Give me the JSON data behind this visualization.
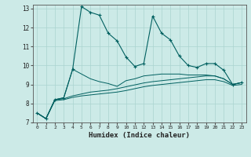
{
  "xlabel": "Humidex (Indice chaleur)",
  "bg_color": "#cceae7",
  "line_color": "#006060",
  "grid_color": "#aad4d0",
  "xlim": [
    -0.5,
    23.5
  ],
  "ylim": [
    7,
    13.2
  ],
  "yticks": [
    7,
    8,
    9,
    10,
    11,
    12,
    13
  ],
  "xticks": [
    0,
    1,
    2,
    3,
    4,
    5,
    6,
    7,
    8,
    9,
    10,
    11,
    12,
    13,
    14,
    15,
    16,
    17,
    18,
    19,
    20,
    21,
    22,
    23
  ],
  "line1_x": [
    0,
    1,
    2,
    3,
    4,
    5,
    6,
    7,
    8,
    9,
    10,
    11,
    12,
    13,
    14,
    15,
    16,
    17,
    18,
    19,
    20,
    21,
    22,
    23
  ],
  "line1_y": [
    7.5,
    7.2,
    8.2,
    8.3,
    9.8,
    13.1,
    12.8,
    12.65,
    11.7,
    11.3,
    10.45,
    9.95,
    10.1,
    12.6,
    11.7,
    11.35,
    10.5,
    10.0,
    9.9,
    10.1,
    10.1,
    9.75,
    9.0,
    9.1
  ],
  "line2_x": [
    0,
    1,
    2,
    3,
    4,
    5,
    6,
    7,
    8,
    9,
    10,
    11,
    12,
    13,
    14,
    15,
    16,
    17,
    18,
    19,
    20,
    21,
    22,
    23
  ],
  "line2_y": [
    7.5,
    7.2,
    8.2,
    8.3,
    9.8,
    9.55,
    9.3,
    9.15,
    9.05,
    8.9,
    9.2,
    9.3,
    9.45,
    9.5,
    9.55,
    9.55,
    9.55,
    9.5,
    9.5,
    9.5,
    9.45,
    9.3,
    9.0,
    9.1
  ],
  "line3_x": [
    0,
    1,
    2,
    3,
    4,
    5,
    6,
    7,
    8,
    9,
    10,
    11,
    12,
    13,
    14,
    15,
    16,
    17,
    18,
    19,
    20,
    21,
    22,
    23
  ],
  "line3_y": [
    7.5,
    7.2,
    8.2,
    8.25,
    8.4,
    8.5,
    8.6,
    8.65,
    8.7,
    8.78,
    8.88,
    8.98,
    9.08,
    9.15,
    9.2,
    9.25,
    9.3,
    9.35,
    9.4,
    9.45,
    9.45,
    9.3,
    9.0,
    9.1
  ],
  "line4_x": [
    0,
    1,
    2,
    3,
    4,
    5,
    6,
    7,
    8,
    9,
    10,
    11,
    12,
    13,
    14,
    15,
    16,
    17,
    18,
    19,
    20,
    21,
    22,
    23
  ],
  "line4_y": [
    7.5,
    7.2,
    8.15,
    8.2,
    8.32,
    8.4,
    8.45,
    8.5,
    8.55,
    8.6,
    8.68,
    8.78,
    8.88,
    8.95,
    9.0,
    9.05,
    9.1,
    9.15,
    9.2,
    9.25,
    9.25,
    9.15,
    8.95,
    9.0
  ]
}
